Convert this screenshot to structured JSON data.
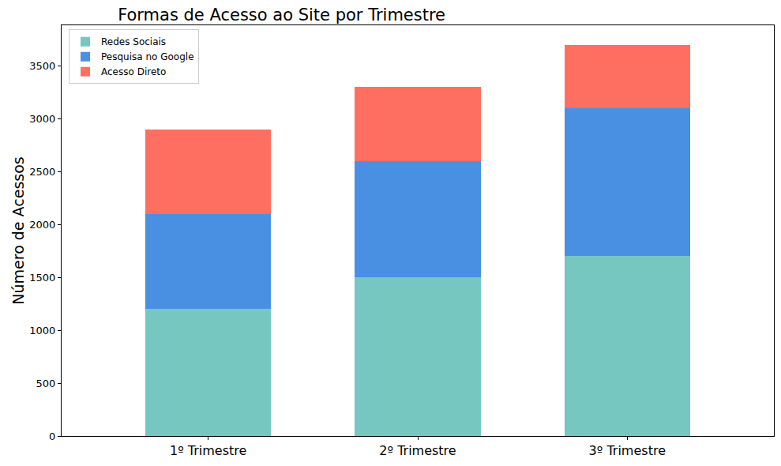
{
  "chart_data": {
    "type": "bar",
    "title": "Formas de Acesso ao Site por Trimestre",
    "y_label": "Número de Acessos",
    "categories": [
      "1º Trimestre",
      "2º Trimestre",
      "3º Trimestre"
    ],
    "series": [
      {
        "name": "Redes Sociais",
        "color": "#76c7c0",
        "values": [
          1200,
          1500,
          1700
        ]
      },
      {
        "name": "Pesquisa no Google",
        "color": "#4a90e2",
        "values": [
          900,
          1100,
          1400
        ]
      },
      {
        "name": "Acesso Direto",
        "color": "#ff6f61",
        "values": [
          800,
          700,
          600
        ]
      }
    ],
    "stacked": true,
    "ylim": [
      0,
      3885
    ],
    "yticks": [
      0,
      500,
      1000,
      1500,
      2000,
      2500,
      3000,
      3500
    ],
    "grid": false,
    "legend": "upper left"
  }
}
